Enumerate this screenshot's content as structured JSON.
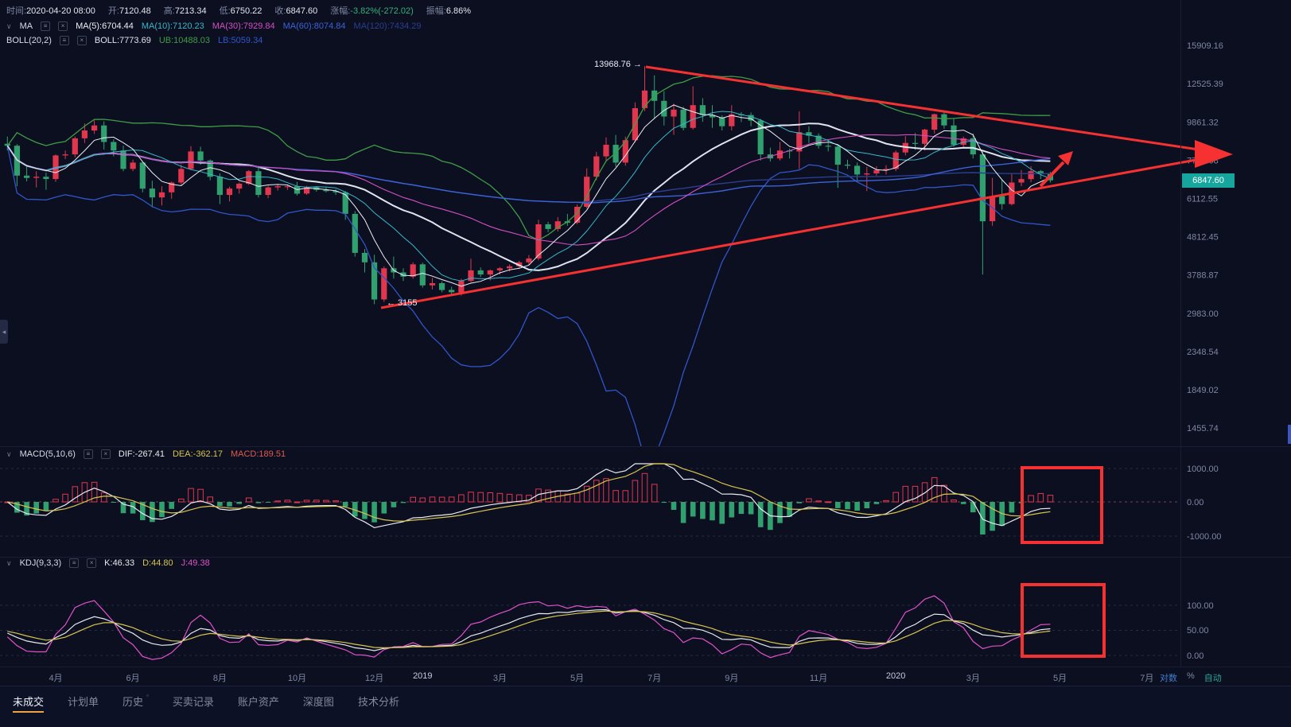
{
  "colors": {
    "up": "#e0364e",
    "down": "#2fa06e",
    "ma5": "#eceef4",
    "ma10": "#37b6c9",
    "ma30": "#d44fc3",
    "ma60": "#3d62d6",
    "ma120": "#2a3f8f",
    "boll_mid": "#dfe4ee",
    "boll_ub": "#3f9d46",
    "boll_lb": "#3056c8",
    "dif": "#e8eaf0",
    "dea": "#d8c54f",
    "macd_value": "#e05a52",
    "k": "#e8eaf0",
    "d": "#d8c54f",
    "j": "#e052c8",
    "annotation": "#f53131",
    "price_tag_bg": "#17a69e",
    "change_down": "#33b37a",
    "axis_text": "#7e87a3",
    "log_label": "#3f7fd2",
    "auto_label": "#26a69a"
  },
  "icons": {
    "collapse": "∨",
    "settings": "≡",
    "close": "×",
    "left_arrow": "◂",
    "small_square": "▫"
  },
  "top_bar": {
    "fields": [
      {
        "label": "时间:",
        "value": "2020-04-20 08:00"
      },
      {
        "label": "开:",
        "value": "7120.48"
      },
      {
        "label": "高:",
        "value": "7213.34"
      },
      {
        "label": "低:",
        "value": "6750.22"
      },
      {
        "label": "收:",
        "value": "6847.60"
      },
      {
        "label": "涨幅:",
        "value": "-3.82%(-272.02)"
      },
      {
        "label": "振幅:",
        "value": "6.86%"
      }
    ]
  },
  "ma_legend": {
    "name": "MA",
    "items": [
      {
        "text": "MA(5):6704.44"
      },
      {
        "text": "MA(10):7120.23"
      },
      {
        "text": "MA(30):7929.84"
      },
      {
        "text": "MA(60):8074.84"
      },
      {
        "text": "MA(120):7434.29"
      }
    ]
  },
  "boll_legend": {
    "name": "BOLL(20,2)",
    "items": [
      {
        "text": "BOLL:7773.69"
      },
      {
        "text": "UB:10488.03"
      },
      {
        "text": "LB:5059.34"
      }
    ]
  },
  "annotations": {
    "high": "13968.76 →",
    "low": "← 3155"
  },
  "price_tag": "6847.60",
  "axis_controls": {
    "log": "对数",
    "percent": "%",
    "auto": "自动"
  },
  "bottom_tabs": {
    "items": [
      {
        "label": "未成交",
        "active": true
      },
      {
        "label": "计划单"
      },
      {
        "label": "历史"
      },
      {
        "label": "买卖记录"
      },
      {
        "label": "账户资产"
      },
      {
        "label": "深度图"
      },
      {
        "label": "技术分析"
      }
    ]
  },
  "chart_data": {
    "type": "candlestick",
    "y_scale": "log",
    "current_price": 6847.6,
    "y_ticks": [
      "15909.16",
      "12525.39",
      "9861.32",
      "7766.08",
      "6112.55",
      "4812.45",
      "3788.87",
      "2983.00",
      "2348.54",
      "1849.02",
      "1455.74"
    ],
    "x_ticks": [
      {
        "label": "4月",
        "i": 5
      },
      {
        "label": "6月",
        "i": 13
      },
      {
        "label": "8月",
        "i": 22
      },
      {
        "label": "10月",
        "i": 30
      },
      {
        "label": "12月",
        "i": 38
      },
      {
        "label": "2019",
        "i": 43
      },
      {
        "label": "3月",
        "i": 51
      },
      {
        "label": "5月",
        "i": 59
      },
      {
        "label": "7月",
        "i": 67
      },
      {
        "label": "9月",
        "i": 75
      },
      {
        "label": "11月",
        "i": 84
      },
      {
        "label": "2020",
        "i": 92
      },
      {
        "label": "3月",
        "i": 100
      },
      {
        "label": "5月",
        "i": 109
      },
      {
        "label": "7月",
        "i": 118
      }
    ],
    "annotation_values": {
      "high": 13968.76,
      "low": 3155
    },
    "candles": [
      [
        8600,
        9000,
        8250,
        8500
      ],
      [
        8500,
        8580,
        6600,
        7050
      ],
      [
        7050,
        7450,
        6800,
        6950
      ],
      [
        6950,
        7250,
        6550,
        7000
      ],
      [
        7000,
        7180,
        6450,
        6900
      ],
      [
        6900,
        8050,
        6780,
        8000
      ],
      [
        8000,
        8250,
        7820,
        8050
      ],
      [
        8050,
        9000,
        7900,
        8900
      ],
      [
        8900,
        9770,
        8650,
        9350
      ],
      [
        9350,
        9950,
        9150,
        9650
      ],
      [
        9650,
        9900,
        8300,
        8700
      ],
      [
        8700,
        8850,
        7950,
        8250
      ],
      [
        8250,
        8500,
        7250,
        7350
      ],
      [
        7350,
        7790,
        7250,
        7650
      ],
      [
        7650,
        7700,
        6350,
        6500
      ],
      [
        6500,
        6830,
        5780,
        6150
      ],
      [
        6150,
        6600,
        5850,
        6350
      ],
      [
        6350,
        6800,
        6100,
        6750
      ],
      [
        6750,
        7550,
        6650,
        7350
      ],
      [
        7350,
        8480,
        7300,
        8200
      ],
      [
        8200,
        8450,
        7550,
        7750
      ],
      [
        7750,
        7800,
        6850,
        7000
      ],
      [
        7000,
        7150,
        5900,
        6250
      ],
      [
        6250,
        6580,
        6000,
        6500
      ],
      [
        6500,
        6750,
        6300,
        6700
      ],
      [
        6700,
        7300,
        6650,
        7250
      ],
      [
        7250,
        7410,
        6150,
        6250
      ],
      [
        6250,
        6620,
        6120,
        6550
      ],
      [
        6550,
        6680,
        6420,
        6600
      ],
      [
        6600,
        6650,
        6450,
        6600
      ],
      [
        6600,
        6780,
        6230,
        6300
      ],
      [
        6300,
        6620,
        6250,
        6550
      ],
      [
        6550,
        6600,
        6380,
        6450
      ],
      [
        6450,
        6550,
        6350,
        6400
      ],
      [
        6400,
        6480,
        6250,
        6350
      ],
      [
        6350,
        6400,
        5350,
        5550
      ],
      [
        5550,
        5650,
        4250,
        4350
      ],
      [
        4350,
        4450,
        3850,
        4100
      ],
      [
        4100,
        4300,
        3155,
        3250
      ],
      [
        3250,
        4000,
        3200,
        3950
      ],
      [
        3950,
        4250,
        3700,
        3850
      ],
      [
        3850,
        3950,
        3650,
        3750
      ],
      [
        3750,
        4100,
        3700,
        4050
      ],
      [
        4050,
        4090,
        3500,
        3550
      ],
      [
        3550,
        3720,
        3460,
        3600
      ],
      [
        3600,
        3640,
        3400,
        3450
      ],
      [
        3450,
        3520,
        3350,
        3400
      ],
      [
        3400,
        3700,
        3330,
        3650
      ],
      [
        3650,
        4190,
        3620,
        3900
      ],
      [
        3900,
        3970,
        3740,
        3800
      ],
      [
        3800,
        3920,
        3660,
        3900
      ],
      [
        3900,
        3980,
        3800,
        3950
      ],
      [
        3950,
        4050,
        3870,
        4000
      ],
      [
        4000,
        4140,
        3930,
        4100
      ],
      [
        4100,
        4290,
        4030,
        4200
      ],
      [
        4200,
        5350,
        4150,
        5200
      ],
      [
        5200,
        5280,
        4950,
        5050
      ],
      [
        5050,
        5440,
        4970,
        5300
      ],
      [
        5300,
        5550,
        5150,
        5250
      ],
      [
        5250,
        5890,
        5200,
        5800
      ],
      [
        5800,
        7380,
        5750,
        7000
      ],
      [
        7000,
        8180,
        6850,
        7950
      ],
      [
        7950,
        8950,
        7750,
        8550
      ],
      [
        8550,
        9090,
        7450,
        7650
      ],
      [
        7650,
        9000,
        7500,
        8800
      ],
      [
        8800,
        11150,
        8670,
        10750
      ],
      [
        10750,
        13968.76,
        10550,
        12000
      ],
      [
        12000,
        13200,
        10050,
        11250
      ],
      [
        11250,
        11950,
        9650,
        10200
      ],
      [
        10200,
        11050,
        9100,
        10650
      ],
      [
        10650,
        10850,
        9350,
        9500
      ],
      [
        9500,
        12320,
        9400,
        10950
      ],
      [
        10950,
        11450,
        9870,
        10300
      ],
      [
        10300,
        10950,
        9500,
        10150
      ],
      [
        10150,
        10280,
        9350,
        9600
      ],
      [
        9600,
        10950,
        9350,
        10350
      ],
      [
        10350,
        10490,
        9850,
        10300
      ],
      [
        10300,
        10460,
        9600,
        9950
      ],
      [
        9950,
        10050,
        7750,
        8050
      ],
      [
        8050,
        8400,
        7700,
        7850
      ],
      [
        7850,
        8700,
        7750,
        8250
      ],
      [
        8250,
        8350,
        7850,
        8200
      ],
      [
        8200,
        10540,
        7350,
        9250
      ],
      [
        9250,
        9600,
        8650,
        9050
      ],
      [
        9050,
        9180,
        8350,
        8500
      ],
      [
        8500,
        8800,
        8200,
        8450
      ],
      [
        8450,
        8530,
        6530,
        7550
      ],
      [
        7550,
        7790,
        7350,
        7500
      ],
      [
        7500,
        7650,
        6850,
        7100
      ],
      [
        7100,
        7450,
        6400,
        7150
      ],
      [
        7150,
        7480,
        7050,
        7300
      ],
      [
        7300,
        7520,
        7100,
        7350
      ],
      [
        7350,
        8250,
        7250,
        8150
      ],
      [
        8150,
        9020,
        8000,
        8650
      ],
      [
        8650,
        9200,
        8280,
        8600
      ],
      [
        8600,
        9450,
        8250,
        9400
      ],
      [
        9400,
        10390,
        9170,
        10350
      ],
      [
        10350,
        10500,
        9450,
        9650
      ],
      [
        9650,
        10050,
        8450,
        8550
      ],
      [
        8550,
        9000,
        8400,
        8900
      ],
      [
        8900,
        9170,
        7850,
        8050
      ],
      [
        8050,
        8180,
        3800,
        5300
      ],
      [
        5300,
        6950,
        5150,
        6200
      ],
      [
        6200,
        6850,
        5700,
        5900
      ],
      [
        5900,
        7120,
        5850,
        6750
      ],
      [
        6750,
        7300,
        6600,
        6900
      ],
      [
        6900,
        7480,
        6770,
        7250
      ],
      [
        7250,
        7300,
        6900,
        7120
      ],
      [
        7120.48,
        7213.34,
        6750.22,
        6847.6
      ]
    ],
    "macd": {
      "name": "MACD(5,10,6)",
      "items": [
        {
          "text": "DIF:-267.41"
        },
        {
          "text": "DEA:-362.17"
        },
        {
          "text": "MACD:189.51"
        }
      ],
      "y_ticks": [
        "1000.00",
        "0.00",
        "-1000.00"
      ]
    },
    "kdj": {
      "name": "KDJ(9,3,3)",
      "items": [
        {
          "text": "K:46.33"
        },
        {
          "text": "D:44.80"
        },
        {
          "text": "J:49.38"
        }
      ],
      "y_ticks": [
        "100.00",
        "50.00",
        "0.00"
      ]
    }
  }
}
